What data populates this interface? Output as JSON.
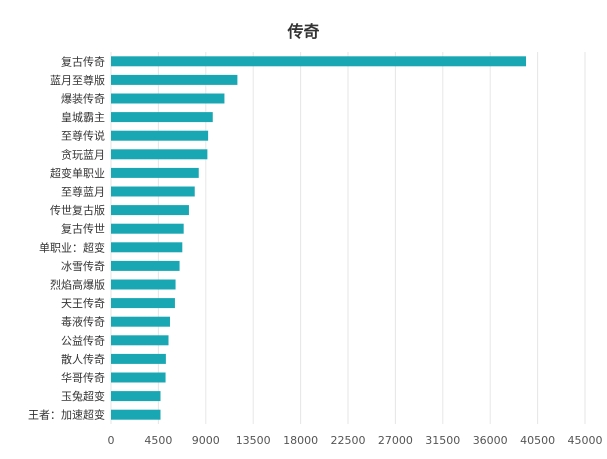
{
  "chart_data": {
    "type": "bar",
    "orientation": "horizontal",
    "title": "传奇",
    "xlabel": "",
    "ylabel": "",
    "categories": [
      "复古传奇",
      "蓝月至尊版",
      "爆装传奇",
      "皇城霸主",
      "至尊传说",
      "贪玩蓝月",
      "超变单职业",
      "至尊蓝月",
      "传世复古版",
      "复古传世",
      "单职业：超变",
      "冰雪传奇",
      "烈焰高爆版",
      "天王传奇",
      "毒液传奇",
      "公益传奇",
      "散人传奇",
      "华哥传奇",
      "玉兔超变",
      "王者：加速超变"
    ],
    "values": [
      39400,
      12000,
      10770,
      9660,
      9220,
      9150,
      8330,
      7950,
      7400,
      6900,
      6770,
      6510,
      6130,
      6070,
      5600,
      5460,
      5210,
      5180,
      4700,
      4700
    ],
    "xlim": [
      0,
      45000
    ],
    "xticks": [
      "0",
      "4500",
      "9000",
      "13500",
      "18000",
      "22500",
      "27000",
      "31500",
      "36000",
      "40500",
      "45000"
    ],
    "grid": true,
    "bar_color": "#1aa7b4",
    "grid_color": "#e6e6e6"
  }
}
